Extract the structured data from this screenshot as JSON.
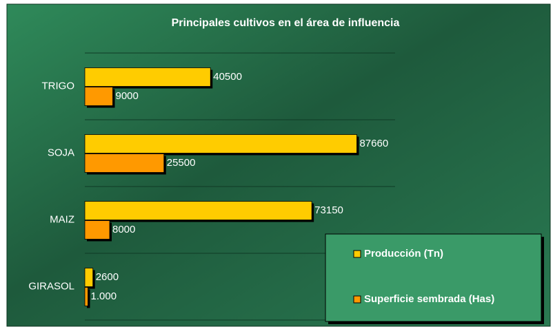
{
  "chart_data": {
    "type": "hbar",
    "title": "Principales cultivos en el área de influencia",
    "categories": [
      "TRIGO",
      "SOJA",
      "MAIZ",
      "GIRASOL"
    ],
    "series": [
      {
        "name": "Producción (Tn)",
        "color": "#ffcc00",
        "values": [
          40500,
          87660,
          73150,
          2600
        ]
      },
      {
        "name": "Superficie sembrada (Has)",
        "color": "#ff9900",
        "values": [
          9000,
          25500,
          8000,
          1000
        ],
        "value_labels": [
          "9000",
          "25500",
          "8000",
          "1.000"
        ]
      }
    ],
    "xlim": [
      0,
      100000
    ],
    "grid": true,
    "legend": "bottom-right"
  }
}
